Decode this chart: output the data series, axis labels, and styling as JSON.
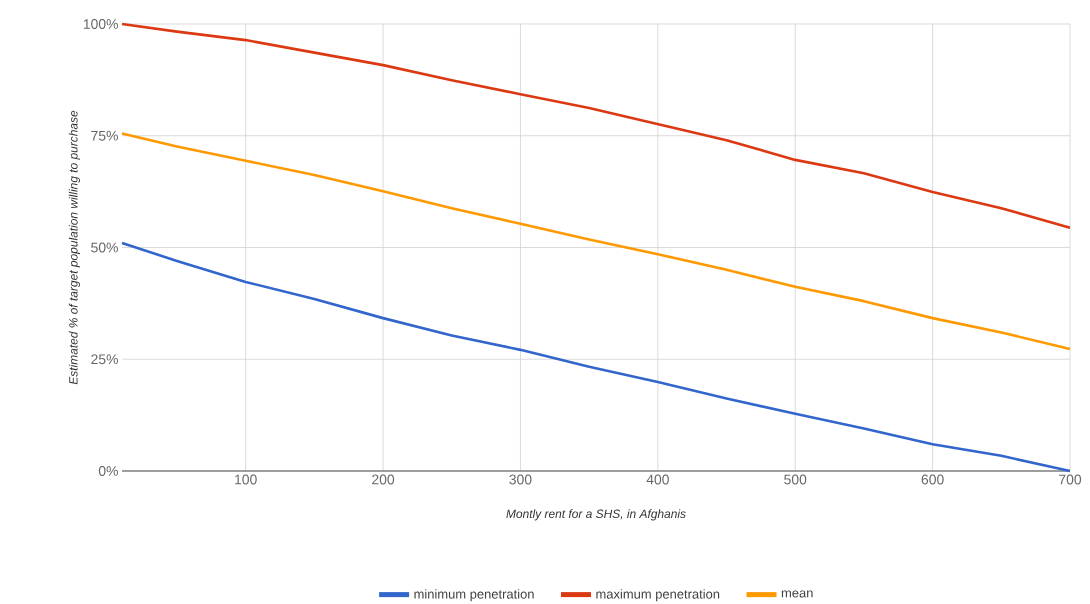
{
  "chart_data": {
    "type": "line",
    "xlabel": "Montly rent for a SHS, in Afghanis",
    "ylabel": "Estimated % of target population willing to purchase",
    "x": [
      10,
      50,
      100,
      150,
      200,
      250,
      300,
      350,
      400,
      450,
      500,
      550,
      600,
      650,
      700
    ],
    "series": [
      {
        "name": "minimum penetration",
        "color": "#3366cc",
        "values": [
          51,
          47,
          42.3,
          38.5,
          34.2,
          30.3,
          27.1,
          23.3,
          19.9,
          16.2,
          12.8,
          9.5,
          6,
          3.4,
          0
        ]
      },
      {
        "name": "maximum penetration",
        "color": "#dc3912",
        "values": [
          100,
          98.3,
          96.4,
          93.6,
          90.8,
          87.4,
          84.3,
          81.2,
          77.6,
          74,
          69.6,
          66.6,
          62.4,
          58.8,
          54.4
        ]
      },
      {
        "name": "mean",
        "color": "#ff9900",
        "values": [
          75.5,
          72.6,
          69.4,
          66.2,
          62.6,
          58.8,
          55.3,
          51.8,
          48.5,
          45,
          41.2,
          38,
          34.2,
          31,
          27.3
        ]
      }
    ],
    "xlim": [
      10,
      700
    ],
    "ylim": [
      0,
      100
    ],
    "xticks": [
      100,
      200,
      300,
      400,
      500,
      600,
      700
    ],
    "yticks": [
      {
        "value": 0,
        "label": "0%"
      },
      {
        "value": 25,
        "label": "25%"
      },
      {
        "value": 50,
        "label": "50%"
      },
      {
        "value": 75,
        "label": "75%"
      },
      {
        "value": 100,
        "label": "100%"
      }
    ],
    "grid": true,
    "legend": "bottom",
    "marker": "none",
    "line_style": "solid"
  }
}
